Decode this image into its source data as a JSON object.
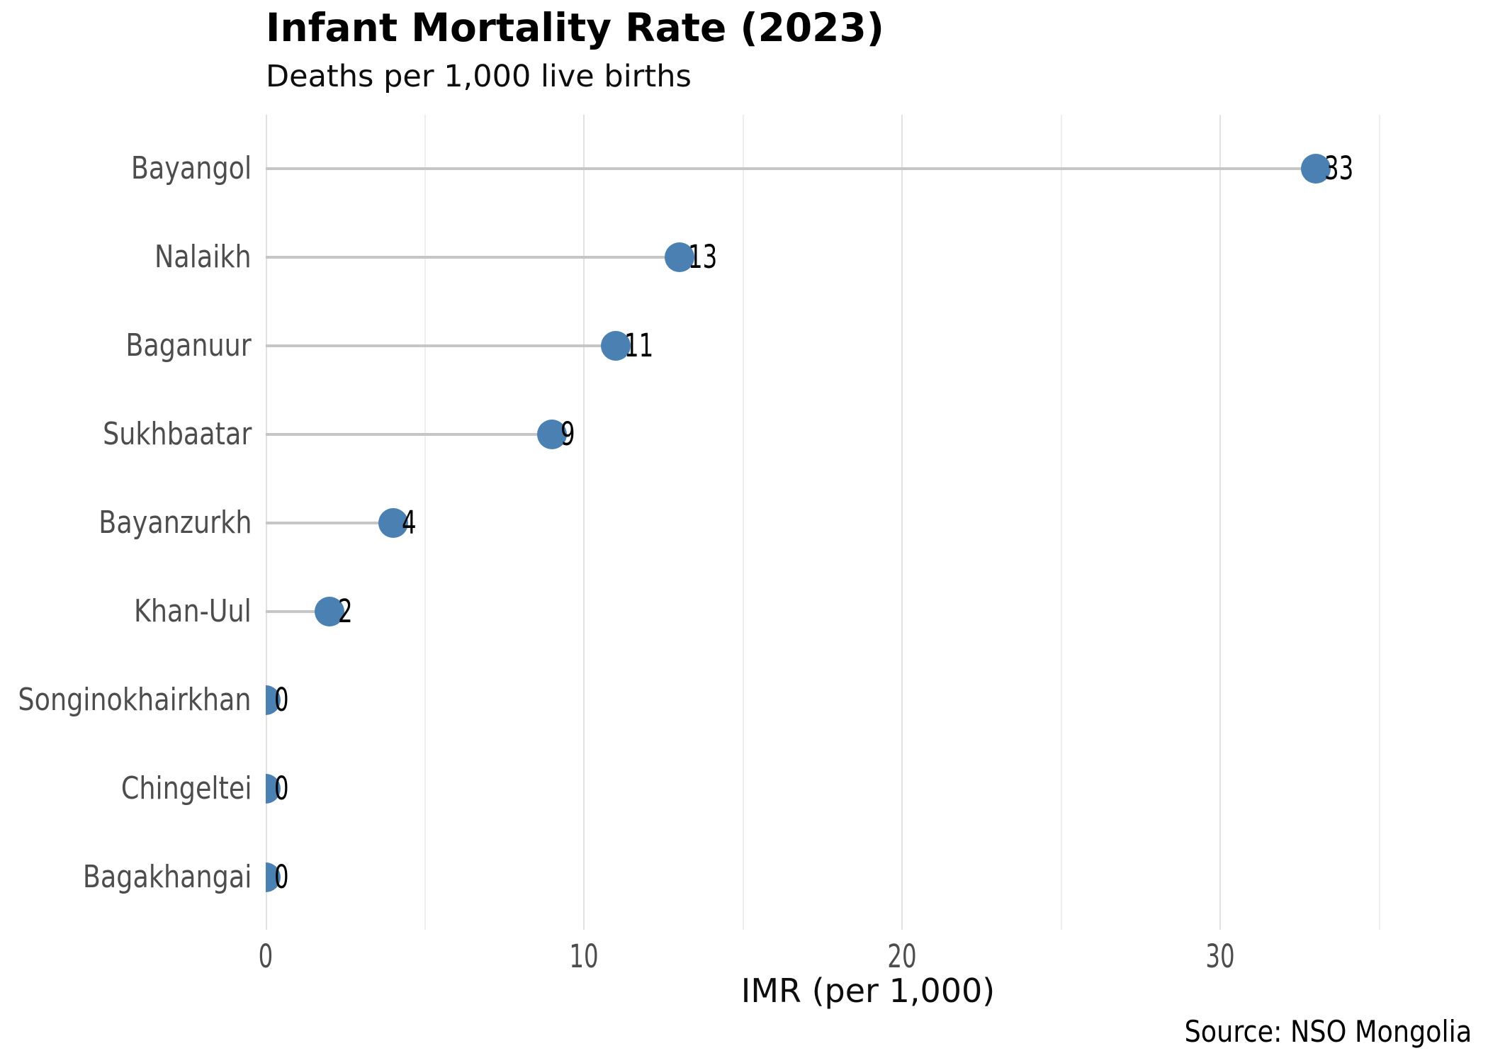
{
  "title": "Infant Mortality Rate (2023)",
  "subtitle": "Deaths per 1,000 live births",
  "source_note": "Source: NSO Mongolia",
  "x_axis": {
    "label": "IMR (per 1,000)",
    "tick_labels": [
      "0",
      "10",
      "20",
      "30"
    ]
  },
  "chart_data": {
    "type": "bar",
    "variant": "horizontal-lollipop",
    "title": "Infant Mortality Rate (2023)",
    "subtitle": "Deaths per 1,000 live births",
    "xlabel": "IMR (per 1,000)",
    "ylabel": "",
    "categories": [
      "Bayangol",
      "Nalaikh",
      "Baganuur",
      "Sukhbaatar",
      "Bayanzurkh",
      "Khan-Uul",
      "Songinokhairkhan",
      "Chingeltei",
      "Bagakhangai"
    ],
    "values": [
      33,
      13,
      11,
      9,
      4,
      2,
      0,
      0,
      0
    ],
    "value_labels": [
      "33",
      "13",
      "11",
      "9",
      "4",
      "2",
      "0",
      "0",
      "0"
    ],
    "xlim": [
      0,
      37.9
    ],
    "xticks": [
      0,
      10,
      20,
      30
    ],
    "minor_xticks": [
      5,
      15,
      25,
      35
    ],
    "grid": "vertical-only",
    "legend": "none",
    "source": "Source: NSO Mongolia",
    "colors": {
      "dot": "#4a80b2",
      "stem": "#c6c6c6",
      "grid_major": "#e2e2e2",
      "grid_minor": "#eeeeee",
      "axis_text": "#4d4d4d",
      "title_text": "#000000"
    }
  }
}
